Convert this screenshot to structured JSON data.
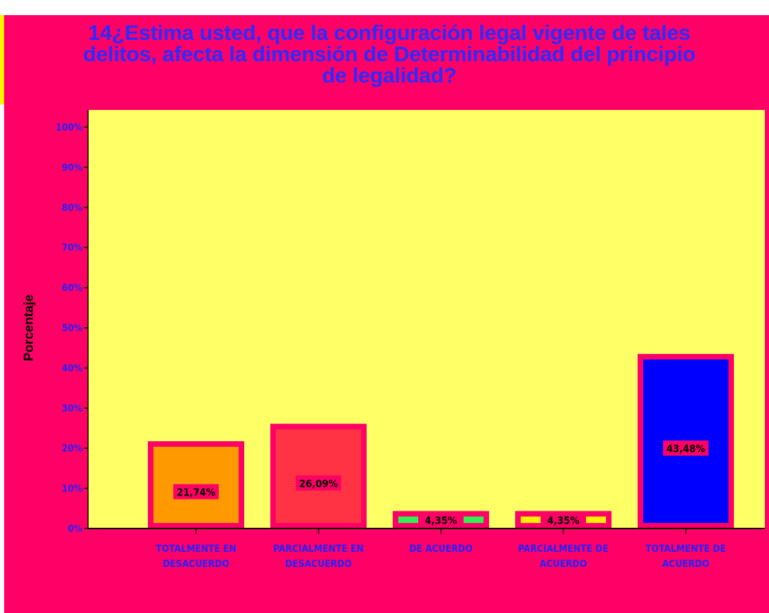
{
  "colors": {
    "frame": "#ff0066",
    "plot_background": "#ffff66",
    "title_text": "#2b2bff",
    "axis_text": "#2222ff",
    "bar_outline": "#ff0066"
  },
  "chart_data": {
    "type": "bar",
    "title": "14¿Estima usted, que la configuración legal vigente de tales delitos, afecta la dimensión de Determinabilidad del principio de legalidad?",
    "title_lines": [
      "14¿Estima usted, que la configuración legal vigente de tales",
      "delitos, afecta la dimensión de Determinabilidad del principio",
      "de legalidad?"
    ],
    "xlabel": "",
    "ylabel": "Porcentaje",
    "ylim": [
      0,
      100
    ],
    "yticks": [
      "0%",
      "10%",
      "20%",
      "30%",
      "40%",
      "50%",
      "60%",
      "70%",
      "80%",
      "90%",
      "100%"
    ],
    "categories": [
      [
        "TOTALMENTE EN",
        "DESACUERDO"
      ],
      [
        "PARCIALMENTE EN",
        "DESACUERDO"
      ],
      [
        "DE ACUERDO"
      ],
      [
        "PARCIALMENTE DE",
        "ACUERDO"
      ],
      [
        "TOTALMENTE DE",
        "ACUERDO"
      ]
    ],
    "values": [
      21.74,
      26.09,
      4.35,
      4.35,
      43.48
    ],
    "value_labels": [
      "21,74%",
      "26,09%",
      "4,35%",
      "4,35%",
      "43,48%"
    ],
    "bar_colors": [
      "#ff9900",
      "#ff3344",
      "#33ee55",
      "#ffee00",
      "#0000ff"
    ],
    "grid": false,
    "legend": "none"
  }
}
